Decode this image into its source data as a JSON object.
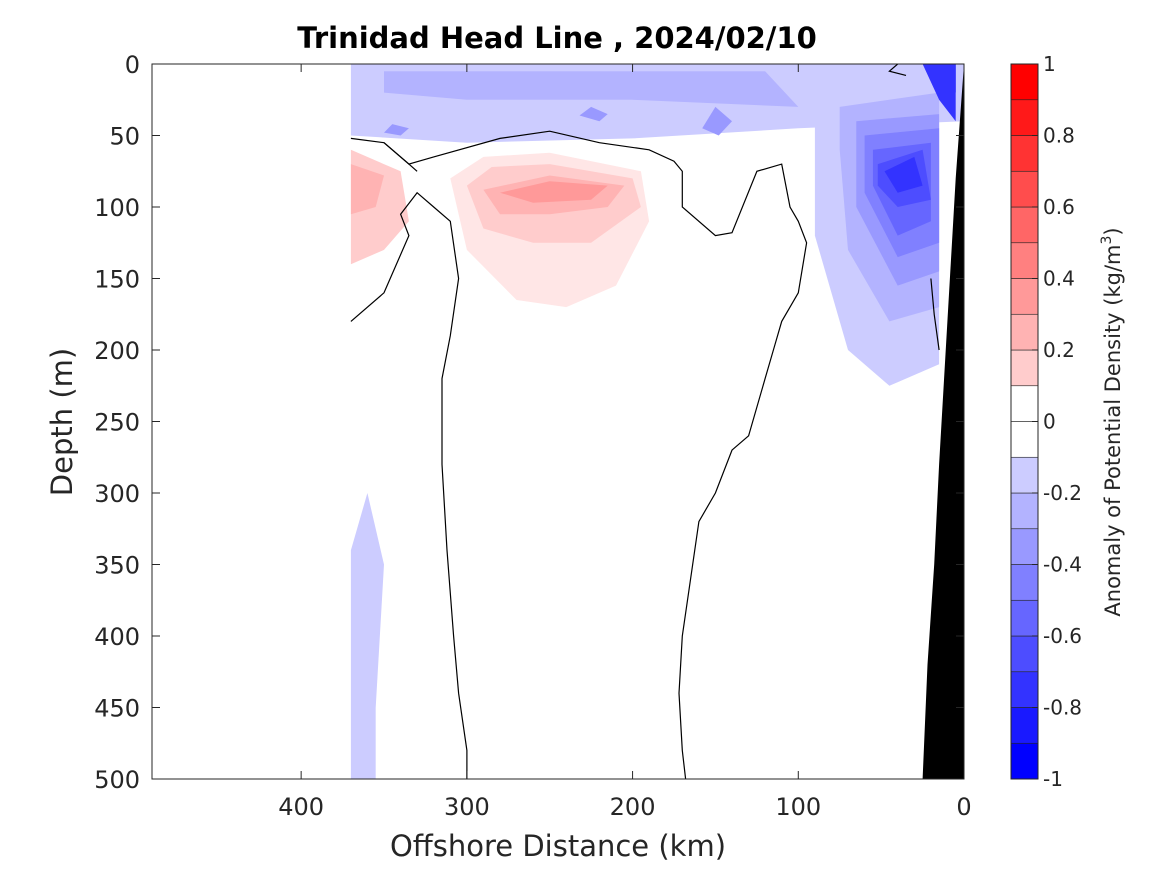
{
  "chart_data": {
    "type": "heatmap",
    "title": "Trinidad Head Line , 2024/02/10",
    "xlabel": "Offshore Distance (km)",
    "ylabel": "Depth (m)",
    "xlim": [
      490,
      0
    ],
    "ylim": [
      0,
      500
    ],
    "x_reversed": true,
    "y_reversed": true,
    "xticks": [
      400,
      300,
      200,
      100,
      0
    ],
    "yticks": [
      0,
      50,
      100,
      150,
      200,
      250,
      300,
      350,
      400,
      450,
      500
    ],
    "colorbar": {
      "label_main": "Anomaly of Potential Density (kg/m",
      "label_sup": "3",
      "label_end": ")",
      "range": [
        -1,
        1
      ],
      "levels": [
        -1,
        -0.9,
        -0.8,
        -0.7,
        -0.6,
        -0.5,
        -0.4,
        -0.3,
        -0.2,
        -0.1,
        0,
        0.1,
        0.2,
        0.3,
        0.4,
        0.5,
        0.6,
        0.7,
        0.8,
        0.9,
        1
      ],
      "ticks": [
        {
          "value": 1,
          "label": "1"
        },
        {
          "value": 0.8,
          "label": "0.8"
        },
        {
          "value": 0.6,
          "label": "0.6"
        },
        {
          "value": 0.4,
          "label": "0.4"
        },
        {
          "value": 0.2,
          "label": "0.2"
        },
        {
          "value": 0,
          "label": "0"
        },
        {
          "value": -0.2,
          "label": "-0.2"
        },
        {
          "value": -0.4,
          "label": "-0.4"
        },
        {
          "value": -0.6,
          "label": "-0.6"
        },
        {
          "value": -0.8,
          "label": "-0.8"
        },
        {
          "value": -1,
          "label": "-1"
        }
      ]
    },
    "colors": {
      "neg_max": "#0000ff",
      "pos_max": "#ff0000",
      "neutral": "#ffffff",
      "bathymetry": "#000000",
      "zero_contour": "#000000"
    },
    "data_extent_km": [
      370,
      0
    ],
    "regions": [
      {
        "name": "surface-negative",
        "level": -0.2,
        "points": [
          [
            370,
            0
          ],
          [
            0,
            0
          ],
          [
            0,
            40
          ],
          [
            100,
            45
          ],
          [
            200,
            52
          ],
          [
            300,
            55
          ],
          [
            370,
            50
          ]
        ]
      },
      {
        "name": "surface-negative-inner",
        "level": -0.3,
        "points": [
          [
            350,
            5
          ],
          [
            120,
            5
          ],
          [
            100,
            30
          ],
          [
            200,
            25
          ],
          [
            300,
            25
          ],
          [
            350,
            20
          ]
        ]
      },
      {
        "name": "surface-negative-patch-1",
        "level": -0.4,
        "points": [
          [
            345,
            42
          ],
          [
            335,
            45
          ],
          [
            340,
            50
          ],
          [
            350,
            48
          ]
        ]
      },
      {
        "name": "surface-negative-patch-2",
        "level": -0.4,
        "points": [
          [
            225,
            30
          ],
          [
            215,
            35
          ],
          [
            220,
            40
          ],
          [
            232,
            36
          ]
        ]
      },
      {
        "name": "surface-negative-patch-3",
        "level": -0.4,
        "points": [
          [
            150,
            30
          ],
          [
            140,
            40
          ],
          [
            148,
            50
          ],
          [
            158,
            45
          ]
        ]
      },
      {
        "name": "nearshore-negative-outer",
        "level": -0.2,
        "points": [
          [
            90,
            0
          ],
          [
            15,
            0
          ],
          [
            15,
            210
          ],
          [
            45,
            225
          ],
          [
            70,
            200
          ],
          [
            90,
            120
          ]
        ]
      },
      {
        "name": "nearshore-negative-2",
        "level": -0.3,
        "points": [
          [
            75,
            30
          ],
          [
            15,
            20
          ],
          [
            15,
            170
          ],
          [
            45,
            180
          ],
          [
            70,
            130
          ],
          [
            75,
            60
          ]
        ]
      },
      {
        "name": "nearshore-negative-3",
        "level": -0.4,
        "points": [
          [
            65,
            40
          ],
          [
            15,
            35
          ],
          [
            15,
            145
          ],
          [
            40,
            155
          ],
          [
            65,
            100
          ]
        ]
      },
      {
        "name": "nearshore-negative-4",
        "level": -0.5,
        "points": [
          [
            60,
            50
          ],
          [
            15,
            45
          ],
          [
            15,
            125
          ],
          [
            40,
            135
          ],
          [
            60,
            90
          ]
        ]
      },
      {
        "name": "nearshore-negative-5",
        "level": -0.6,
        "points": [
          [
            55,
            60
          ],
          [
            20,
            55
          ],
          [
            20,
            110
          ],
          [
            40,
            120
          ],
          [
            55,
            85
          ]
        ]
      },
      {
        "name": "nearshore-negative-6",
        "level": -0.7,
        "points": [
          [
            52,
            70
          ],
          [
            25,
            60
          ],
          [
            20,
            95
          ],
          [
            40,
            100
          ],
          [
            52,
            85
          ]
        ]
      },
      {
        "name": "nearshore-negative-7",
        "level": -0.8,
        "points": [
          [
            48,
            75
          ],
          [
            30,
            65
          ],
          [
            25,
            85
          ],
          [
            40,
            90
          ]
        ]
      },
      {
        "name": "corner-negative",
        "level": -0.9,
        "points": [
          [
            15,
            0
          ],
          [
            5,
            0
          ],
          [
            5,
            20
          ],
          [
            10,
            10
          ]
        ]
      },
      {
        "name": "corner-negative-2",
        "level": -0.8,
        "points": [
          [
            25,
            0
          ],
          [
            5,
            0
          ],
          [
            5,
            40
          ],
          [
            15,
            25
          ]
        ]
      },
      {
        "name": "offshore-deep-negative",
        "level": -0.2,
        "points": [
          [
            370,
            340
          ],
          [
            360,
            300
          ],
          [
            350,
            350
          ],
          [
            355,
            450
          ],
          [
            355,
            500
          ],
          [
            370,
            500
          ]
        ]
      },
      {
        "name": "positive-left",
        "level": 0.2,
        "points": [
          [
            370,
            60
          ],
          [
            340,
            75
          ],
          [
            335,
            110
          ],
          [
            350,
            130
          ],
          [
            370,
            140
          ]
        ]
      },
      {
        "name": "positive-left-inner",
        "level": 0.3,
        "points": [
          [
            370,
            70
          ],
          [
            350,
            78
          ],
          [
            355,
            100
          ],
          [
            370,
            105
          ]
        ]
      },
      {
        "name": "positive-main",
        "level": 0.1,
        "points": [
          [
            310,
            80
          ],
          [
            300,
            130
          ],
          [
            270,
            165
          ],
          [
            240,
            170
          ],
          [
            210,
            155
          ],
          [
            190,
            110
          ],
          [
            195,
            75
          ],
          [
            250,
            62
          ],
          [
            290,
            65
          ]
        ]
      },
      {
        "name": "positive-main-2",
        "level": 0.2,
        "points": [
          [
            300,
            85
          ],
          [
            290,
            115
          ],
          [
            260,
            125
          ],
          [
            225,
            125
          ],
          [
            195,
            100
          ],
          [
            200,
            80
          ],
          [
            250,
            70
          ],
          [
            285,
            72
          ]
        ]
      },
      {
        "name": "positive-main-3",
        "level": 0.3,
        "points": [
          [
            290,
            88
          ],
          [
            280,
            105
          ],
          [
            250,
            105
          ],
          [
            215,
            100
          ],
          [
            205,
            85
          ],
          [
            250,
            78
          ]
        ]
      },
      {
        "name": "positive-main-4",
        "level": 0.4,
        "points": [
          [
            280,
            90
          ],
          [
            260,
            97
          ],
          [
            225,
            95
          ],
          [
            215,
            85
          ],
          [
            250,
            82
          ]
        ]
      }
    ],
    "zero_contours": [
      [
        [
          370,
          52
        ],
        [
          350,
          55
        ],
        [
          335,
          70
        ],
        [
          320,
          65
        ],
        [
          280,
          52
        ],
        [
          250,
          47
        ],
        [
          220,
          55
        ],
        [
          190,
          60
        ],
        [
          175,
          68
        ],
        [
          170,
          75
        ],
        [
          170,
          100
        ],
        [
          150,
          120
        ],
        [
          140,
          118
        ],
        [
          125,
          75
        ],
        [
          110,
          70
        ],
        [
          105,
          100
        ],
        [
          100,
          110
        ],
        [
          95,
          125
        ],
        [
          100,
          160
        ],
        [
          110,
          180
        ],
        [
          115,
          200
        ],
        [
          120,
          220
        ],
        [
          130,
          260
        ],
        [
          140,
          270
        ],
        [
          150,
          300
        ],
        [
          160,
          320
        ],
        [
          165,
          360
        ],
        [
          170,
          400
        ],
        [
          172,
          440
        ],
        [
          170,
          480
        ],
        [
          168,
          500
        ]
      ],
      [
        [
          370,
          180
        ],
        [
          350,
          160
        ],
        [
          335,
          120
        ],
        [
          340,
          105
        ],
        [
          330,
          90
        ],
        [
          320,
          100
        ],
        [
          310,
          110
        ],
        [
          305,
          150
        ],
        [
          310,
          190
        ],
        [
          315,
          220
        ],
        [
          315,
          280
        ],
        [
          312,
          340
        ],
        [
          308,
          400
        ],
        [
          305,
          440
        ],
        [
          300,
          480
        ],
        [
          300,
          500
        ]
      ],
      [
        [
          350,
          55
        ],
        [
          335,
          70
        ],
        [
          330,
          75
        ]
      ],
      [
        [
          40,
          0
        ],
        [
          45,
          5
        ],
        [
          35,
          8
        ]
      ],
      [
        [
          20,
          150
        ],
        [
          18,
          175
        ],
        [
          15,
          200
        ]
      ]
    ],
    "bathymetry": [
      [
        25,
        500
      ],
      [
        0,
        500
      ],
      [
        0,
        0
      ],
      [
        5,
        80
      ],
      [
        10,
        180
      ],
      [
        15,
        280
      ],
      [
        18,
        350
      ],
      [
        22,
        420
      ],
      [
        25,
        500
      ]
    ]
  }
}
